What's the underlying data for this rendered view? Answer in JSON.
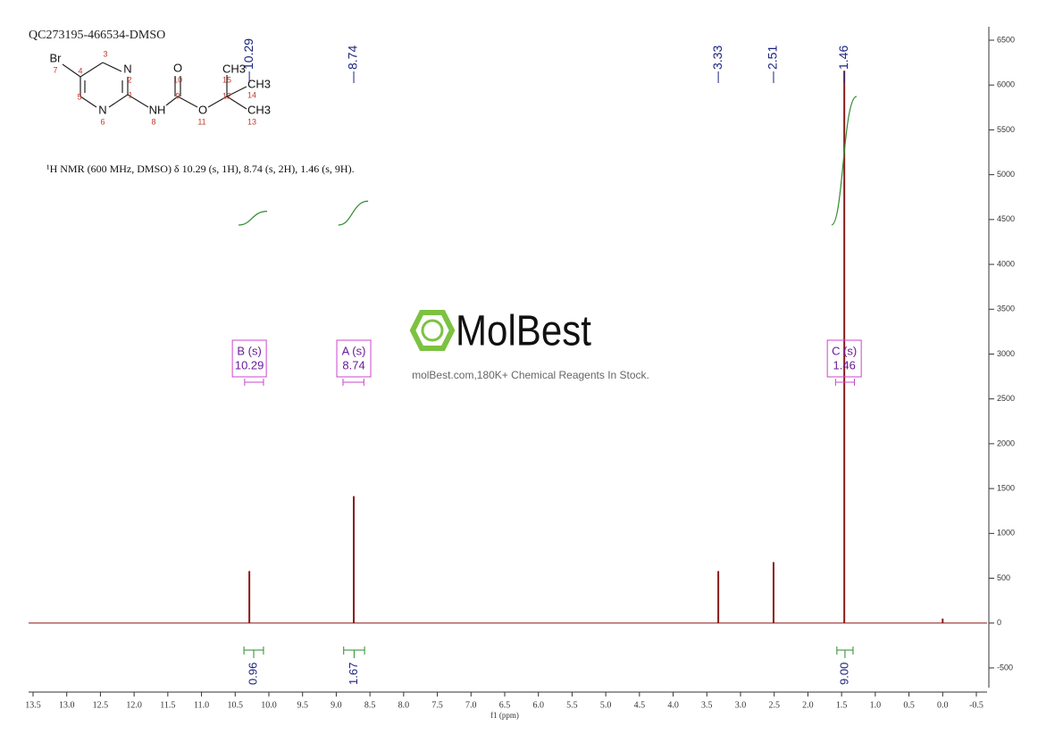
{
  "chart_data": {
    "type": "nmr",
    "title": "QC273195-466534-DMSO",
    "description": "¹H NMR (600 MHz, DMSO) δ 10.29 (s, 1H), 8.74 (s, 2H), 1.46 (s, 9H).",
    "x_label": "f1 (ppm)",
    "watermark": "MolBest",
    "watermark_subtitle": "molBest.com,180K+ Chemical Reagents In Stock.",
    "structure": {
      "atoms": [
        "Br",
        "N",
        "N",
        "NH",
        "O",
        "O",
        "CH3",
        "CH3",
        "CH3"
      ],
      "numbers": [
        "1",
        "2",
        "3",
        "4",
        "5",
        "6",
        "7",
        "8",
        "9",
        "10",
        "11",
        "12",
        "13",
        "14",
        "15"
      ]
    },
    "peaks": {
      "x": [
        10.29,
        8.74,
        3.33,
        2.51,
        1.46
      ],
      "values": [
        580,
        1415,
        580,
        680,
        6160
      ],
      "color": "#8b1a1a"
    },
    "unlabeled_peaks": {
      "x": [
        0.0
      ],
      "values": [
        50
      ]
    },
    "peak_label_color": "#1a237e",
    "multiplets": [
      {
        "name": "B (s)",
        "shift": 10.29,
        "range": [
          10.36,
          10.08
        ]
      },
      {
        "name": "A (s)",
        "shift": 8.74,
        "range": [
          8.9,
          8.59
        ]
      },
      {
        "name": "C (s)",
        "shift": 1.46,
        "range": [
          1.59,
          1.31
        ]
      }
    ],
    "multiplet_color": "#cc44cc",
    "integrals": {
      "values": [
        0.96,
        1.67,
        9
      ],
      "value_labels": [
        "0.96",
        "1.67",
        "9.00"
      ],
      "ranges": [
        [
          10.37,
          10.08
        ],
        [
          8.89,
          8.58
        ],
        [
          1.57,
          1.33
        ]
      ],
      "color": "#2e8b2e"
    },
    "xlim": [
      13.5,
      -0.5
    ],
    "xticks": [
      13.5,
      {
        "value": 13,
        "label": "13.0"
      },
      12.5,
      {
        "value": 12,
        "label": "12.0"
      },
      11.5,
      {
        "value": 11,
        "label": "11.0"
      },
      10.5,
      {
        "value": 10,
        "label": "10.0"
      },
      9.5,
      {
        "value": 9,
        "label": "9.0"
      },
      8.5,
      {
        "value": 8,
        "label": "8.0"
      },
      7.5,
      {
        "value": 7,
        "label": "7.0"
      },
      6.5,
      {
        "value": 6,
        "label": "6.0"
      },
      5.5,
      {
        "value": 5,
        "label": "5.0"
      },
      4.5,
      {
        "value": 4,
        "label": "4.0"
      },
      3.5,
      {
        "value": 3,
        "label": "3.0"
      },
      2.5,
      {
        "value": 2,
        "label": "2.0"
      },
      1.5,
      {
        "value": 1,
        "label": "1.0"
      },
      0.5,
      {
        "value": 0,
        "label": "0.0"
      },
      -0.5
    ],
    "ylim": [
      -600,
      6500
    ],
    "yticks": [
      -500,
      0,
      500,
      1000,
      1500,
      2000,
      2500,
      3000,
      3500,
      4000,
      4500,
      5000,
      5500,
      6000,
      6500
    ]
  }
}
